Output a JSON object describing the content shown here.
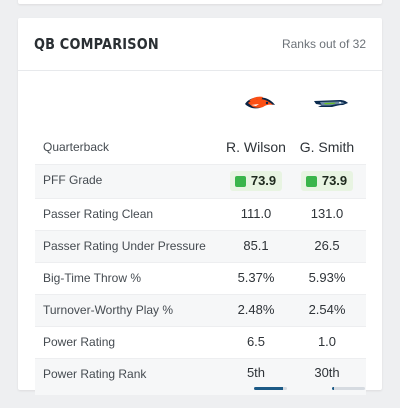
{
  "card": {
    "title": "QB COMPARISON",
    "subtitle": "Ranks out of 32"
  },
  "teams": [
    {
      "icon": "broncos-logo-icon",
      "color": "#fb4f14"
    },
    {
      "icon": "seahawks-logo-icon",
      "color": "#002244"
    }
  ],
  "rows": [
    {
      "label": "Quarterback",
      "values": [
        "R. Wilson",
        "G. Smith"
      ]
    },
    {
      "label": "PFF Grade",
      "values": [
        "73.9",
        "73.9"
      ]
    },
    {
      "label": "Passer Rating Clean",
      "values": [
        "111.0",
        "131.0"
      ]
    },
    {
      "label": "Passer Rating Under Pressure",
      "values": [
        "85.1",
        "26.5"
      ]
    },
    {
      "label": "Big-Time Throw %",
      "values": [
        "5.37%",
        "5.93%"
      ]
    },
    {
      "label": "Turnover-Worthy Play %",
      "values": [
        "2.48%",
        "2.54%"
      ]
    },
    {
      "label": "Power Rating",
      "values": [
        "6.5",
        "1.0"
      ]
    },
    {
      "label": "Power Rating Rank",
      "values": [
        "5th",
        "30th"
      ],
      "bar_fill": [
        0.87,
        0.06
      ]
    }
  ],
  "colors": {
    "grade_green": "#3ab54a",
    "rank_bar": "#1c5a86"
  }
}
